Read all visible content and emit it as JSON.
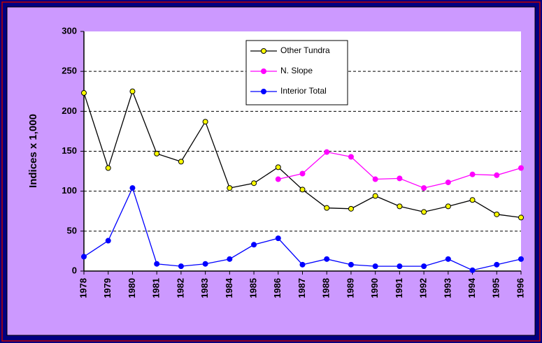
{
  "chart_data": {
    "type": "line",
    "y_label": "Indices x 1,000",
    "categories": [
      "1978",
      "1979",
      "1980",
      "1981",
      "1982",
      "1983",
      "1984",
      "1985",
      "1986",
      "1987",
      "1988",
      "1989",
      "1990",
      "1991",
      "1992",
      "1993",
      "1994",
      "1995",
      "1996"
    ],
    "series": [
      {
        "name": "Other Tundra",
        "color": "#000000",
        "marker_color": "#ffff00",
        "values": [
          223,
          129,
          225,
          147,
          137,
          187,
          104,
          110,
          130,
          102,
          79,
          78,
          94,
          81,
          74,
          81,
          89,
          71,
          67
        ]
      },
      {
        "name": "N. Slope",
        "color": "#ff00ff",
        "marker_color": "#ff00ff",
        "values": [
          null,
          null,
          null,
          null,
          null,
          null,
          null,
          null,
          115,
          122,
          149,
          143,
          115,
          116,
          104,
          111,
          121,
          120,
          129
        ]
      },
      {
        "name": "Interior Total",
        "color": "#0000ff",
        "marker_color": "#0000ff",
        "values": [
          18,
          38,
          104,
          9,
          6,
          9,
          15,
          33,
          41,
          8,
          15,
          8,
          6,
          6,
          6,
          15,
          1,
          8,
          15
        ]
      }
    ],
    "ylim": [
      0,
      300
    ],
    "yticks": [
      0,
      50,
      100,
      150,
      200,
      250,
      300
    ],
    "grid": true,
    "legend": "top"
  }
}
